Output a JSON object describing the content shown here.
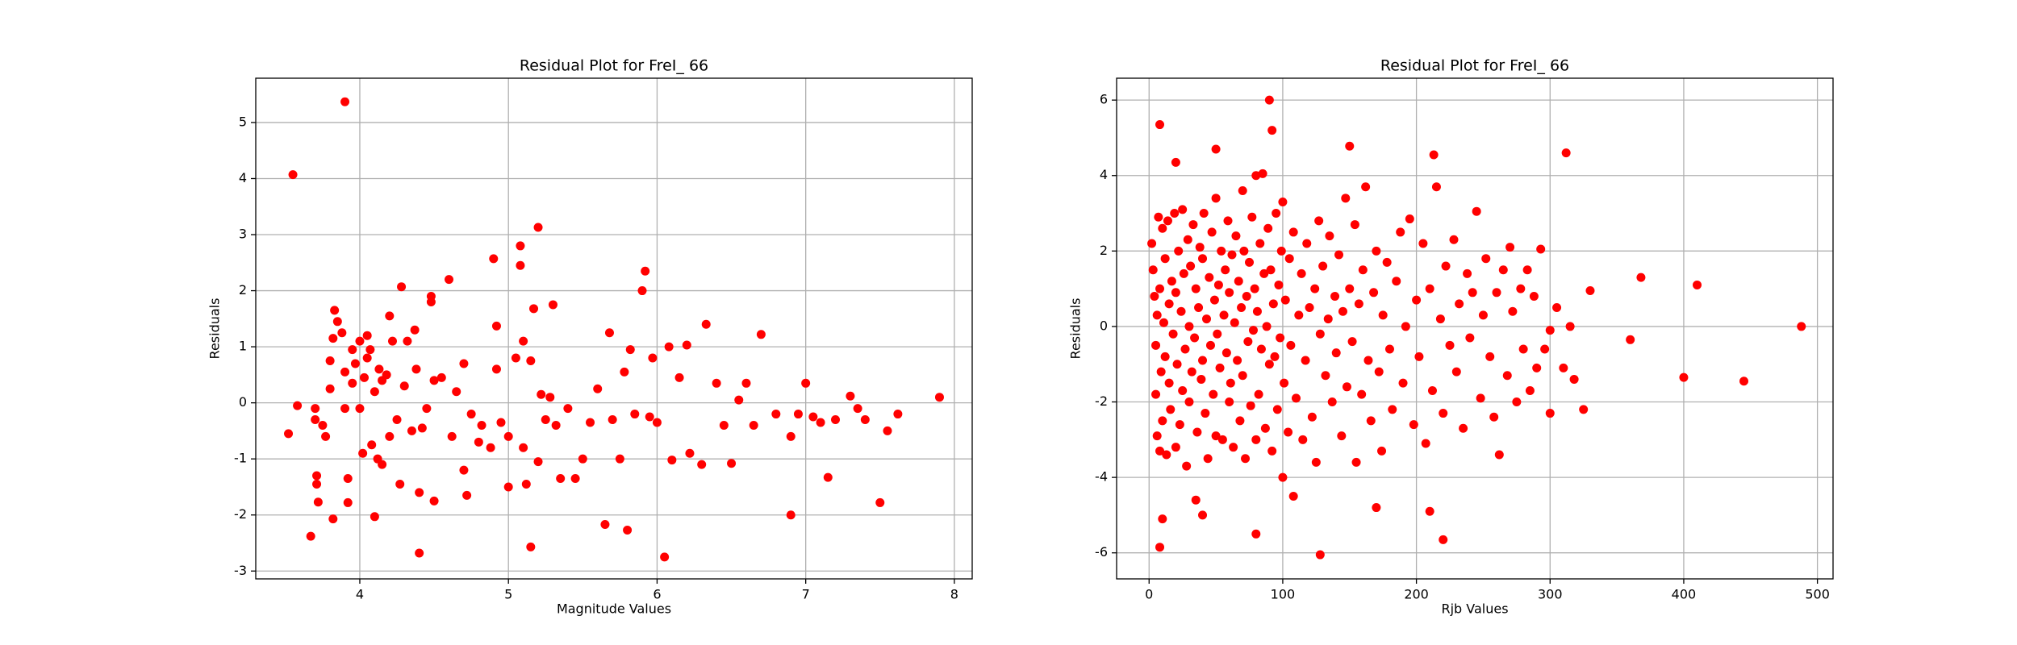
{
  "chart_data": [
    {
      "type": "scatter",
      "title": "Residual Plot for FreI_ 66",
      "xlabel": "Magnitude Values",
      "ylabel": "Residuals",
      "color": "red",
      "grid": true,
      "xlim": [
        3.3,
        8.12
      ],
      "ylim": [
        -3.14,
        5.79
      ],
      "xticks": [
        4,
        5,
        6,
        7,
        8
      ],
      "yticks": [
        -3,
        -2,
        -1,
        0,
        1,
        2,
        3,
        4,
        5
      ],
      "x": [
        3.52,
        3.55,
        3.58,
        3.67,
        3.7,
        3.7,
        3.71,
        3.71,
        3.72,
        3.75,
        3.77,
        3.8,
        3.8,
        3.82,
        3.82,
        3.83,
        3.85,
        3.88,
        3.9,
        3.9,
        3.9,
        3.92,
        3.92,
        3.95,
        3.95,
        3.97,
        4.0,
        4.0,
        4.02,
        4.03,
        4.05,
        4.05,
        4.07,
        4.08,
        4.1,
        4.1,
        4.12,
        4.13,
        4.15,
        4.15,
        4.18,
        4.2,
        4.2,
        4.22,
        4.25,
        4.27,
        4.28,
        4.3,
        4.32,
        4.35,
        4.37,
        4.38,
        4.4,
        4.4,
        4.42,
        4.45,
        4.48,
        4.48,
        4.5,
        4.5,
        4.55,
        4.6,
        4.62,
        4.65,
        4.7,
        4.7,
        4.72,
        4.75,
        4.8,
        4.82,
        4.88,
        4.9,
        4.92,
        4.92,
        4.95,
        5.0,
        5.0,
        5.05,
        5.08,
        5.08,
        5.1,
        5.1,
        5.12,
        5.15,
        5.15,
        5.17,
        5.2,
        5.2,
        5.22,
        5.25,
        5.28,
        5.3,
        5.32,
        5.35,
        5.4,
        5.45,
        5.5,
        5.55,
        5.6,
        5.65,
        5.68,
        5.7,
        5.75,
        5.78,
        5.8,
        5.82,
        5.85,
        5.9,
        5.92,
        5.95,
        5.97,
        6.0,
        6.05,
        6.08,
        6.1,
        6.15,
        6.2,
        6.22,
        6.3,
        6.33,
        6.4,
        6.45,
        6.5,
        6.55,
        6.6,
        6.65,
        6.7,
        6.8,
        6.9,
        6.9,
        6.95,
        7.0,
        7.05,
        7.1,
        7.15,
        7.2,
        7.3,
        7.35,
        7.4,
        7.5,
        7.55,
        7.62,
        7.9
      ],
      "values": [
        -0.55,
        4.07,
        -0.05,
        -2.38,
        -0.1,
        -0.3,
        -1.3,
        -1.45,
        -1.77,
        -0.4,
        -0.6,
        0.75,
        0.25,
        -2.07,
        1.15,
        1.65,
        1.45,
        1.25,
        5.37,
        -0.1,
        0.55,
        -1.78,
        -1.35,
        0.35,
        0.95,
        0.7,
        -0.1,
        1.1,
        -0.9,
        0.45,
        0.8,
        1.2,
        0.95,
        -0.75,
        -2.03,
        0.2,
        -1.0,
        0.6,
        0.4,
        -1.1,
        0.5,
        1.55,
        -0.6,
        1.1,
        -0.3,
        -1.45,
        2.07,
        0.3,
        1.1,
        -0.5,
        1.3,
        0.6,
        -2.68,
        -1.6,
        -0.45,
        -0.1,
        1.8,
        1.9,
        0.4,
        -1.75,
        0.45,
        2.2,
        -0.6,
        0.2,
        0.7,
        -1.2,
        -1.65,
        -0.2,
        -0.7,
        -0.4,
        -0.8,
        2.57,
        1.37,
        0.6,
        -0.35,
        -0.6,
        -1.5,
        0.8,
        2.45,
        2.8,
        1.1,
        -0.8,
        -1.45,
        -2.57,
        0.75,
        1.68,
        3.13,
        -1.05,
        0.15,
        -0.3,
        0.1,
        1.75,
        -0.4,
        -1.35,
        -0.1,
        -1.35,
        -1.0,
        -0.35,
        0.25,
        -2.17,
        1.25,
        -0.3,
        -1.0,
        0.55,
        -2.27,
        0.95,
        -0.2,
        2.0,
        2.35,
        -0.25,
        0.8,
        -0.35,
        -2.75,
        1.0,
        -1.02,
        0.45,
        1.03,
        -0.9,
        -1.1,
        1.4,
        0.35,
        -0.4,
        -1.08,
        0.05,
        0.35,
        -0.4,
        1.22,
        -0.2,
        -2.0,
        -0.6,
        -0.2,
        0.35,
        -0.25,
        -0.35,
        -1.33,
        -0.3,
        0.12,
        -0.1,
        -0.3,
        -1.78,
        -0.5,
        -0.2,
        0.1
      ]
    },
    {
      "type": "scatter",
      "title": "Residual Plot for FreI_ 66",
      "xlabel": "Rjb Values",
      "ylabel": "Residuals",
      "color": "red",
      "grid": true,
      "xlim": [
        -24.3,
        511.7
      ],
      "ylim": [
        -6.69,
        6.58
      ],
      "xticks": [
        0,
        100,
        200,
        300,
        400,
        500
      ],
      "yticks": [
        -6,
        -4,
        -2,
        0,
        2,
        4,
        6
      ],
      "x": [
        8,
        20,
        50,
        90,
        92,
        150,
        213,
        312,
        8,
        10,
        40,
        80,
        128,
        220,
        100,
        108,
        170,
        210,
        488,
        445,
        410,
        400,
        368,
        360,
        325,
        330,
        300,
        2,
        3,
        4,
        5,
        5,
        6,
        6,
        7,
        8,
        8,
        9,
        10,
        10,
        11,
        12,
        12,
        13,
        14,
        15,
        15,
        16,
        17,
        18,
        19,
        20,
        20,
        21,
        22,
        23,
        24,
        25,
        25,
        26,
        27,
        28,
        29,
        30,
        30,
        31,
        32,
        33,
        34,
        35,
        35,
        36,
        37,
        38,
        39,
        40,
        40,
        41,
        42,
        43,
        44,
        45,
        46,
        47,
        48,
        49,
        50,
        50,
        51,
        52,
        53,
        54,
        55,
        56,
        57,
        58,
        59,
        60,
        60,
        61,
        62,
        63,
        64,
        65,
        66,
        67,
        68,
        69,
        70,
        70,
        71,
        72,
        73,
        74,
        75,
        76,
        77,
        78,
        79,
        80,
        80,
        81,
        82,
        83,
        84,
        85,
        86,
        87,
        88,
        89,
        90,
        91,
        92,
        93,
        94,
        95,
        96,
        97,
        98,
        99,
        100,
        101,
        102,
        104,
        105,
        106,
        108,
        110,
        112,
        114,
        115,
        117,
        118,
        120,
        122,
        124,
        125,
        127,
        128,
        130,
        132,
        134,
        135,
        137,
        139,
        140,
        142,
        144,
        145,
        147,
        148,
        150,
        152,
        154,
        155,
        157,
        159,
        160,
        162,
        164,
        166,
        168,
        170,
        172,
        174,
        175,
        178,
        180,
        182,
        185,
        188,
        190,
        192,
        195,
        198,
        200,
        202,
        205,
        207,
        210,
        212,
        215,
        218,
        220,
        222,
        225,
        228,
        230,
        232,
        235,
        238,
        240,
        242,
        245,
        248,
        250,
        252,
        255,
        258,
        260,
        262,
        265,
        268,
        270,
        272,
        275,
        278,
        280,
        283,
        285,
        288,
        290,
        293,
        296,
        300,
        305,
        310,
        315,
        318
      ],
      "values": [
        5.35,
        4.35,
        4.7,
        6.0,
        5.2,
        4.78,
        4.55,
        4.6,
        -5.85,
        -5.1,
        -5.0,
        -5.5,
        -6.05,
        -5.65,
        -4.0,
        -4.5,
        -4.8,
        -4.9,
        0.0,
        -1.45,
        1.1,
        -1.35,
        1.3,
        -0.35,
        -2.2,
        0.95,
        -2.3,
        2.2,
        1.5,
        0.8,
        -0.5,
        -1.8,
        -2.9,
        0.3,
        2.9,
        -3.3,
        1.0,
        -1.2,
        2.6,
        -2.5,
        0.1,
        1.8,
        -0.8,
        -3.4,
        2.8,
        -1.5,
        0.6,
        -2.2,
        1.2,
        -0.2,
        3.0,
        -3.2,
        0.9,
        -1.0,
        2.0,
        -2.6,
        0.4,
        3.1,
        -1.7,
        1.4,
        -0.6,
        -3.7,
        2.3,
        -2.0,
        0.0,
        1.6,
        -1.2,
        2.7,
        -0.3,
        -4.6,
        1.0,
        -2.8,
        0.5,
        2.1,
        -1.4,
        -0.9,
        1.8,
        3.0,
        -2.3,
        0.2,
        -3.5,
        1.3,
        -0.5,
        2.5,
        -1.8,
        0.7,
        3.4,
        -2.9,
        -0.2,
        1.1,
        -1.1,
        2.0,
        -3.0,
        0.3,
        1.5,
        -0.7,
        2.8,
        -2.0,
        0.9,
        -1.5,
        1.9,
        -3.2,
        0.1,
        2.4,
        -0.9,
        1.2,
        -2.5,
        0.5,
        3.6,
        -1.3,
        2.0,
        -3.5,
        0.8,
        -0.4,
        1.7,
        -2.1,
        2.9,
        -0.1,
        1.0,
        -3.0,
        4.0,
        0.4,
        -1.8,
        2.2,
        -0.6,
        4.05,
        1.4,
        -2.7,
        0.0,
        2.6,
        -1.0,
        1.5,
        -3.3,
        0.6,
        -0.8,
        3.0,
        -2.2,
        1.1,
        -0.3,
        2.0,
        3.3,
        -1.5,
        0.7,
        -2.8,
        1.8,
        -0.5,
        2.5,
        -1.9,
        0.3,
        1.4,
        -3.0,
        -0.9,
        2.2,
        0.5,
        -2.4,
        1.0,
        -3.6,
        2.8,
        -0.2,
        1.6,
        -1.3,
        0.2,
        2.4,
        -2.0,
        0.8,
        -0.7,
        1.9,
        -2.9,
        0.4,
        3.4,
        -1.6,
        1.0,
        -0.4,
        2.7,
        -3.6,
        0.6,
        -1.8,
        1.5,
        3.7,
        -0.9,
        -2.5,
        0.9,
        2.0,
        -1.2,
        -3.3,
        0.3,
        1.7,
        -0.6,
        -2.2,
        1.2,
        2.5,
        -1.5,
        0.0,
        2.85,
        -2.6,
        0.7,
        -0.8,
        2.2,
        -3.1,
        1.0,
        -1.7,
        3.7,
        0.2,
        -2.3,
        1.6,
        -0.5,
        2.3,
        -1.2,
        0.6,
        -2.7,
        1.4,
        -0.3,
        0.9,
        3.05,
        -1.9,
        0.3,
        1.8,
        -0.8,
        -2.4,
        0.9,
        -3.4,
        1.5,
        -1.3,
        2.1,
        0.4,
        -2.0,
        1.0,
        -0.6,
        1.5,
        -1.7,
        0.8,
        -1.1,
        2.05,
        -0.6,
        -0.1,
        0.5,
        -1.1,
        0.0,
        -1.4
      ]
    }
  ]
}
